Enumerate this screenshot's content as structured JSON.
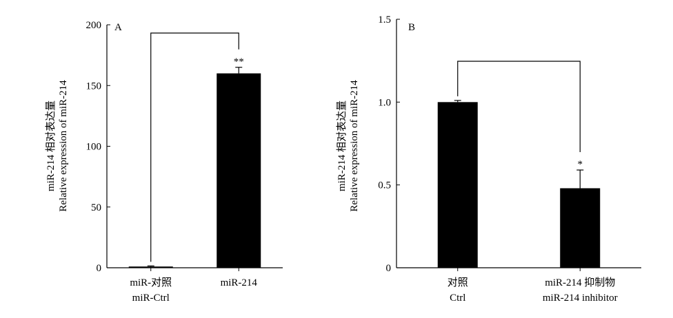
{
  "chart_data": [
    {
      "panel_label": "A",
      "type": "bar",
      "ylabel_cn": "miR-214 相对表达量",
      "ylabel_en": "Relative expression of miR-214",
      "ylim": [
        0,
        200
      ],
      "yticks": [
        "0",
        "50",
        "100",
        "150",
        "200"
      ],
      "categories": [
        {
          "cn": "miR-对照",
          "en": "miR-Ctrl"
        },
        {
          "cn": "miR-214",
          "en": ""
        }
      ],
      "values": [
        1,
        160
      ],
      "errors": [
        0.5,
        5
      ],
      "significance": "**",
      "grid": false,
      "color": "#000000"
    },
    {
      "panel_label": "B",
      "type": "bar",
      "ylabel_cn": "miR-214 相对表达量",
      "ylabel_en": "Relative expression of miR-214",
      "ylim": [
        0,
        1.5
      ],
      "yticks": [
        "0",
        "0.5",
        "1.0",
        "1.5"
      ],
      "categories": [
        {
          "cn": "对照",
          "en": "Ctrl"
        },
        {
          "cn": "miR-214 抑制物",
          "en": "miR-214 inhibitor"
        }
      ],
      "values": [
        1.0,
        0.48
      ],
      "errors": [
        0.01,
        0.11
      ],
      "significance": "*",
      "grid": false,
      "color": "#000000"
    }
  ]
}
